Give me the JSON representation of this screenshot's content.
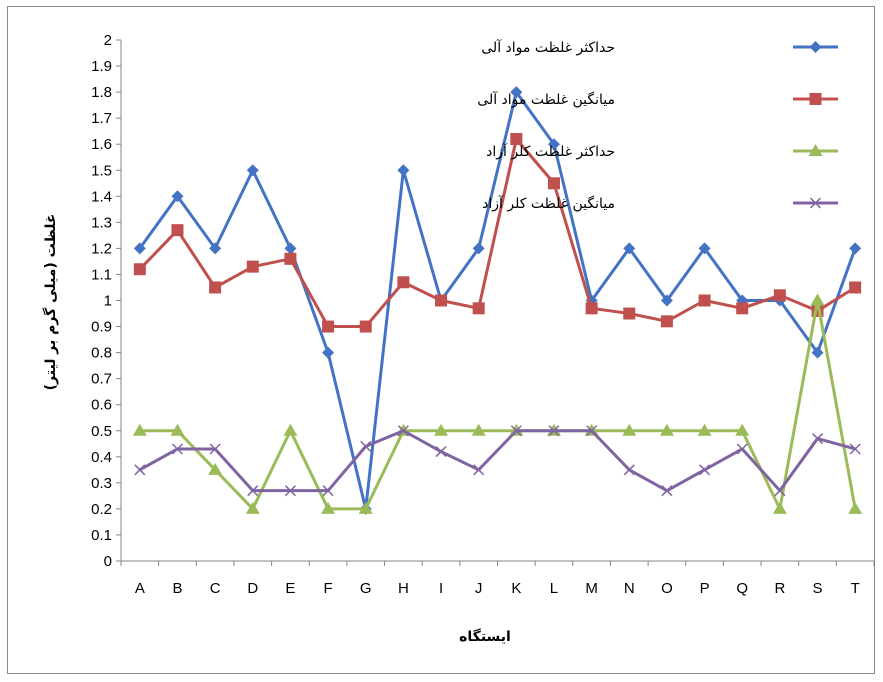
{
  "chart_data": {
    "type": "line",
    "xlabel": "ایستگاه",
    "ylabel": "غلظت (میلی گرم بر لیتر)",
    "ylim": [
      0,
      2
    ],
    "ytick_step": 0.1,
    "categories": [
      "A",
      "B",
      "C",
      "D",
      "E",
      "F",
      "G",
      "H",
      "I",
      "J",
      "K",
      "L",
      "M",
      "N",
      "O",
      "P",
      "Q",
      "R",
      "S",
      "T"
    ],
    "legend_position": "top-right",
    "grid": false,
    "series": [
      {
        "name": "حداکثر غلظت مواد آلی",
        "color": "#4472C4",
        "marker": "diamond",
        "values": [
          1.2,
          1.4,
          1.2,
          1.5,
          1.2,
          0.8,
          0.2,
          1.5,
          1.0,
          1.2,
          1.8,
          1.6,
          1.0,
          1.2,
          1.0,
          1.2,
          1.0,
          1.0,
          0.8,
          1.2
        ]
      },
      {
        "name": "میانگین غلظت مواد آلی",
        "color": "#C0504D",
        "marker": "square",
        "values": [
          1.12,
          1.27,
          1.05,
          1.13,
          1.16,
          0.9,
          0.9,
          1.07,
          1.0,
          0.97,
          1.62,
          1.45,
          0.97,
          0.95,
          0.92,
          1.0,
          0.97,
          1.02,
          0.96,
          1.05
        ]
      },
      {
        "name": "حداکثر غلظت کلر آزاد",
        "color": "#9BBB59",
        "marker": "triangle",
        "values": [
          0.5,
          0.5,
          0.35,
          0.2,
          0.5,
          0.2,
          0.2,
          0.5,
          0.5,
          0.5,
          0.5,
          0.5,
          0.5,
          0.5,
          0.5,
          0.5,
          0.5,
          0.2,
          1.0,
          0.2
        ]
      },
      {
        "name": "میانگین غلظت کلر آزاد",
        "color": "#8064A2",
        "marker": "x",
        "values": [
          0.35,
          0.43,
          0.43,
          0.27,
          0.27,
          0.27,
          0.44,
          0.5,
          0.42,
          0.35,
          0.5,
          0.5,
          0.5,
          0.35,
          0.27,
          0.35,
          0.43,
          0.27,
          0.47,
          0.43
        ]
      }
    ]
  }
}
